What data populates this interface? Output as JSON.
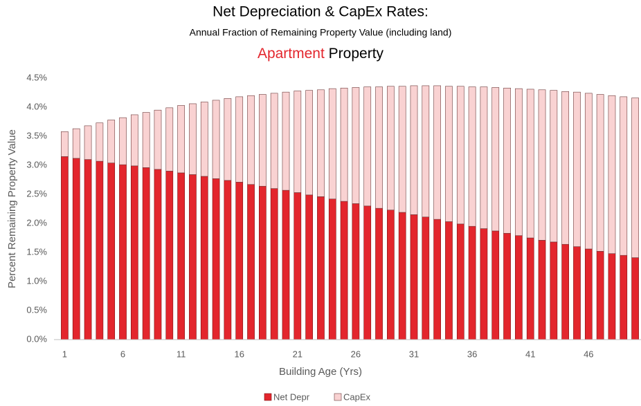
{
  "chart_data": {
    "type": "stacked_bar",
    "title": "Net Depreciation & CapEx Rates:",
    "subtitle": "Annual Fraction of Remaining Property Value (including land)",
    "property_type": "Apartment",
    "property_word": "Property",
    "x_label": "Building Age (Yrs)",
    "y_label": "Percent Remaining Property Value",
    "categories": [
      1,
      null,
      null,
      null,
      null,
      6,
      null,
      null,
      null,
      null,
      11,
      null,
      null,
      null,
      null,
      16,
      null,
      null,
      null,
      null,
      21,
      null,
      null,
      null,
      null,
      26,
      null,
      null,
      null,
      null,
      31,
      null,
      null,
      null,
      null,
      36,
      null,
      null,
      null,
      null,
      41,
      null,
      null,
      null,
      null,
      46,
      null,
      null,
      null,
      null
    ],
    "series": [
      {
        "name": "Net Depr",
        "color": "#e3262d",
        "values": [
          3.15,
          3.12,
          3.1,
          3.07,
          3.04,
          3.01,
          2.99,
          2.96,
          2.93,
          2.9,
          2.87,
          2.84,
          2.81,
          2.77,
          2.74,
          2.71,
          2.67,
          2.64,
          2.6,
          2.57,
          2.53,
          2.49,
          2.46,
          2.42,
          2.38,
          2.34,
          2.3,
          2.26,
          2.23,
          2.19,
          2.15,
          2.11,
          2.07,
          2.03,
          1.99,
          1.95,
          1.91,
          1.87,
          1.83,
          1.79,
          1.75,
          1.71,
          1.68,
          1.64,
          1.6,
          1.56,
          1.52,
          1.48,
          1.45,
          1.41
        ]
      },
      {
        "name": "CapEx",
        "color": "#f9d2d2",
        "values": [
          0.43,
          0.51,
          0.58,
          0.66,
          0.74,
          0.81,
          0.88,
          0.95,
          1.02,
          1.09,
          1.16,
          1.22,
          1.28,
          1.35,
          1.41,
          1.47,
          1.53,
          1.58,
          1.64,
          1.69,
          1.75,
          1.8,
          1.84,
          1.9,
          1.95,
          2.0,
          2.05,
          2.09,
          2.13,
          2.17,
          2.22,
          2.26,
          2.3,
          2.33,
          2.37,
          2.4,
          2.44,
          2.47,
          2.5,
          2.53,
          2.56,
          2.59,
          2.61,
          2.63,
          2.66,
          2.68,
          2.7,
          2.72,
          2.73,
          2.75
        ]
      }
    ],
    "ylim": [
      0,
      4.5
    ],
    "yticks": [
      {
        "value": 0,
        "label": "0.0%"
      },
      {
        "value": 0.5,
        "label": "0.5%"
      },
      {
        "value": 1,
        "label": "1.0%"
      },
      {
        "value": 1.5,
        "label": "1.5%"
      },
      {
        "value": 2,
        "label": "2.0%"
      },
      {
        "value": 2.5,
        "label": "2.5%"
      },
      {
        "value": 3,
        "label": "3.0%"
      },
      {
        "value": 3.5,
        "label": "3.5%"
      },
      {
        "value": 4,
        "label": "4.0%"
      },
      {
        "value": 4.5,
        "label": "4.5%"
      }
    ],
    "grid": false,
    "legend": "bottom"
  }
}
